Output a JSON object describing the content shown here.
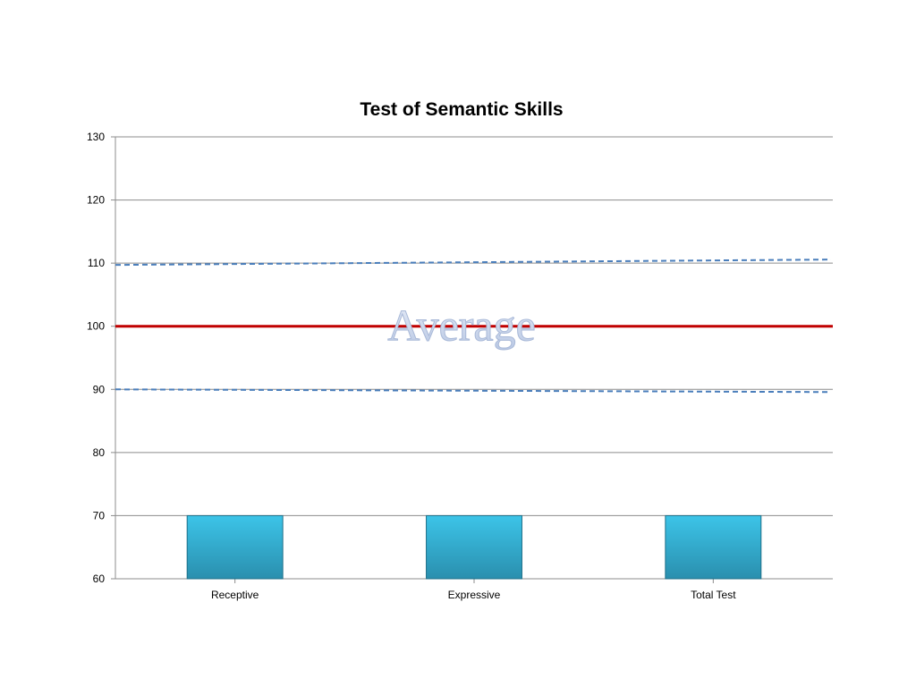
{
  "chart_data": {
    "type": "bar",
    "title": "Test of Semantic Skills",
    "categories": [
      "Receptive",
      "Expressive",
      "Total Test"
    ],
    "values": [
      70,
      70,
      70
    ],
    "ylim": [
      60,
      130
    ],
    "yticks": [
      60,
      70,
      80,
      90,
      100,
      110,
      120,
      130
    ],
    "grid": true,
    "bar_color": "#2fa8cc",
    "reference_lines": [
      {
        "value": 100,
        "style": "solid",
        "color": "#c00000"
      },
      {
        "value": 110,
        "style": "dashed",
        "color": "#4a7ebb"
      },
      {
        "value": 90,
        "style": "dashed",
        "color": "#4a7ebb"
      }
    ],
    "annotation": {
      "text": "Average",
      "value": 100,
      "color": "#c5d3ea"
    }
  }
}
